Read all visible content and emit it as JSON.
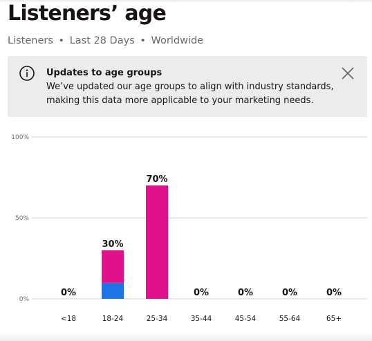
{
  "header": {
    "title": "Listeners’ age",
    "subtitle_parts": [
      "Listeners",
      "Last 28 Days",
      "Worldwide"
    ],
    "separator": "•"
  },
  "banner": {
    "icon": "info-icon",
    "title": "Updates to age groups",
    "text": "We’ve updated our age groups to align with industry standards, making this data more applicable to your marketing needs.",
    "close_icon": "close-icon"
  },
  "colors": {
    "primary_bar": "#e1118c",
    "secondary_bar": "#1e73e6",
    "gridline": "#cfcfcf",
    "banner_bg": "#ececec"
  },
  "chart_data": {
    "type": "bar",
    "stacked": true,
    "categories": [
      "<18",
      "18-24",
      "25-34",
      "35-44",
      "45-54",
      "55-64",
      "65+"
    ],
    "totals_labels": [
      "0%",
      "30%",
      "70%",
      "0%",
      "0%",
      "0%",
      "0%"
    ],
    "series": [
      {
        "values": [
          0,
          10,
          0,
          0,
          0,
          0,
          0
        ],
        "color": "#1e73e6"
      },
      {
        "values": [
          0,
          20,
          70,
          0,
          0,
          0,
          0
        ],
        "color": "#e1118c"
      }
    ],
    "y_ticks": [
      "100%",
      "50%",
      "0%"
    ],
    "ylim": [
      0,
      100
    ],
    "grid": true,
    "legend": "none"
  }
}
